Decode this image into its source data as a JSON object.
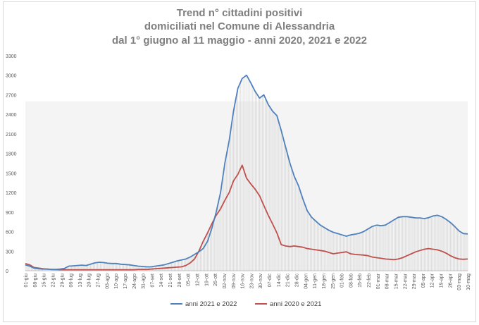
{
  "title_lines": [
    "Trend n° cittadini positivi",
    "domiciliati nel Comune di Alessandria",
    "dal 1° giugno al 11 maggio - anni 2020, 2021 e 2022"
  ],
  "chart_data": {
    "type": "line",
    "title": "Trend n° cittadini positivi domiciliati nel Comune di Alessandria dal 1° giugno al 11 maggio - anni 2020, 2021 e 2022",
    "xlabel": "",
    "ylabel": "",
    "ylim": [
      0,
      3300
    ],
    "yticks": [
      0,
      300,
      600,
      900,
      1200,
      1500,
      1800,
      2100,
      2400,
      2700,
      3000,
      3300
    ],
    "categories": [
      "01-giu",
      "08-giu",
      "15-giu",
      "22-giu",
      "29-giu",
      "06-lug",
      "13-lug",
      "20-lug",
      "27-lug",
      "03-ago",
      "10-ago",
      "17-ago",
      "24-ago",
      "31-ago",
      "07-set",
      "14-set",
      "21-set",
      "28-set",
      "05-ott",
      "12-ott",
      "19-ott",
      "26-ott",
      "02-nov",
      "09-nov",
      "16-nov",
      "23-nov",
      "30-nov",
      "07-dic",
      "14-dic",
      "21-dic",
      "28-dic",
      "04-gen",
      "11-gen",
      "18-gen",
      "25-gen",
      "01-feb",
      "08-feb",
      "15-feb",
      "22-feb",
      "01-mar",
      "08-mar",
      "15-mar",
      "22-mar",
      "29-mar",
      "05-apr",
      "12-apr",
      "19-apr",
      "26-apr",
      "03-mag",
      "10-mag"
    ],
    "grid": false,
    "legend_position": "bottom",
    "series": [
      {
        "name": "anni 2021 e 2022",
        "color": "#4f81bd",
        "points": [
          [
            0,
            90
          ],
          [
            1,
            70
          ],
          [
            2,
            40
          ],
          [
            3,
            30
          ],
          [
            4,
            25
          ],
          [
            5,
            25
          ],
          [
            6,
            20
          ],
          [
            7,
            20
          ],
          [
            8,
            25
          ],
          [
            9,
            35
          ],
          [
            10,
            70
          ],
          [
            11,
            75
          ],
          [
            12,
            80
          ],
          [
            13,
            85
          ],
          [
            14,
            80
          ],
          [
            15,
            100
          ],
          [
            16,
            120
          ],
          [
            17,
            130
          ],
          [
            18,
            125
          ],
          [
            19,
            115
          ],
          [
            20,
            110
          ],
          [
            21,
            110
          ],
          [
            22,
            100
          ],
          [
            23,
            95
          ],
          [
            24,
            90
          ],
          [
            25,
            80
          ],
          [
            26,
            70
          ],
          [
            27,
            65
          ],
          [
            28,
            60
          ],
          [
            29,
            60
          ],
          [
            30,
            70
          ],
          [
            31,
            80
          ],
          [
            32,
            90
          ],
          [
            33,
            110
          ],
          [
            34,
            130
          ],
          [
            35,
            150
          ],
          [
            36,
            165
          ],
          [
            37,
            180
          ],
          [
            38,
            210
          ],
          [
            39,
            250
          ],
          [
            40,
            290
          ],
          [
            41,
            340
          ],
          [
            42,
            450
          ],
          [
            43,
            650
          ],
          [
            44,
            900
          ],
          [
            45,
            1200
          ],
          [
            46,
            1650
          ],
          [
            47,
            2000
          ],
          [
            48,
            2450
          ],
          [
            49,
            2800
          ],
          [
            50,
            2950
          ],
          [
            51,
            3000
          ],
          [
            52,
            2880
          ],
          [
            53,
            2750
          ],
          [
            54,
            2650
          ],
          [
            55,
            2700
          ],
          [
            56,
            2550
          ],
          [
            57,
            2450
          ],
          [
            58,
            2380
          ],
          [
            59,
            2150
          ],
          [
            60,
            1900
          ],
          [
            61,
            1650
          ],
          [
            62,
            1450
          ],
          [
            63,
            1300
          ],
          [
            64,
            1100
          ],
          [
            65,
            920
          ],
          [
            66,
            820
          ],
          [
            67,
            760
          ],
          [
            68,
            700
          ],
          [
            69,
            660
          ],
          [
            70,
            620
          ],
          [
            71,
            590
          ],
          [
            72,
            570
          ],
          [
            73,
            550
          ],
          [
            74,
            530
          ],
          [
            75,
            550
          ],
          [
            76,
            560
          ],
          [
            77,
            575
          ],
          [
            78,
            600
          ],
          [
            79,
            640
          ],
          [
            80,
            680
          ],
          [
            81,
            700
          ],
          [
            82,
            690
          ],
          [
            83,
            700
          ],
          [
            84,
            740
          ],
          [
            85,
            780
          ],
          [
            86,
            820
          ],
          [
            87,
            830
          ],
          [
            88,
            830
          ],
          [
            89,
            820
          ],
          [
            90,
            810
          ],
          [
            91,
            810
          ],
          [
            92,
            800
          ],
          [
            93,
            815
          ],
          [
            94,
            840
          ],
          [
            95,
            850
          ],
          [
            96,
            830
          ],
          [
            97,
            790
          ],
          [
            98,
            740
          ],
          [
            99,
            680
          ],
          [
            100,
            610
          ],
          [
            101,
            570
          ],
          [
            102,
            565
          ]
        ]
      },
      {
        "name": "anni 2020 e 2021",
        "color": "#c0504d",
        "points": [
          [
            0,
            110
          ],
          [
            1,
            90
          ],
          [
            2,
            50
          ],
          [
            3,
            40
          ],
          [
            4,
            30
          ],
          [
            5,
            25
          ],
          [
            6,
            20
          ],
          [
            7,
            18
          ],
          [
            8,
            15
          ],
          [
            9,
            15
          ],
          [
            10,
            15
          ],
          [
            11,
            15
          ],
          [
            12,
            15
          ],
          [
            13,
            15
          ],
          [
            14,
            15
          ],
          [
            15,
            15
          ],
          [
            16,
            15
          ],
          [
            17,
            15
          ],
          [
            18,
            15
          ],
          [
            19,
            15
          ],
          [
            20,
            15
          ],
          [
            21,
            15
          ],
          [
            22,
            15
          ],
          [
            23,
            15
          ],
          [
            24,
            15
          ],
          [
            25,
            15
          ],
          [
            26,
            20
          ],
          [
            27,
            20
          ],
          [
            28,
            20
          ],
          [
            29,
            25
          ],
          [
            30,
            30
          ],
          [
            31,
            35
          ],
          [
            32,
            40
          ],
          [
            33,
            45
          ],
          [
            34,
            50
          ],
          [
            35,
            55
          ],
          [
            36,
            60
          ],
          [
            37,
            80
          ],
          [
            38,
            120
          ],
          [
            39,
            180
          ],
          [
            40,
            300
          ],
          [
            41,
            450
          ],
          [
            42,
            580
          ],
          [
            43,
            720
          ],
          [
            44,
            850
          ],
          [
            45,
            950
          ],
          [
            46,
            1080
          ],
          [
            47,
            1200
          ],
          [
            48,
            1380
          ],
          [
            49,
            1480
          ],
          [
            50,
            1620
          ],
          [
            51,
            1420
          ],
          [
            52,
            1330
          ],
          [
            53,
            1250
          ],
          [
            54,
            1150
          ],
          [
            55,
            1000
          ],
          [
            56,
            850
          ],
          [
            57,
            720
          ],
          [
            58,
            580
          ],
          [
            59,
            400
          ],
          [
            60,
            380
          ],
          [
            61,
            370
          ],
          [
            62,
            380
          ],
          [
            63,
            370
          ],
          [
            64,
            360
          ],
          [
            65,
            340
          ],
          [
            66,
            330
          ],
          [
            67,
            320
          ],
          [
            68,
            310
          ],
          [
            69,
            300
          ],
          [
            70,
            280
          ],
          [
            71,
            260
          ],
          [
            72,
            270
          ],
          [
            73,
            280
          ],
          [
            74,
            290
          ],
          [
            75,
            260
          ],
          [
            76,
            250
          ],
          [
            77,
            245
          ],
          [
            78,
            240
          ],
          [
            79,
            230
          ],
          [
            80,
            210
          ],
          [
            81,
            200
          ],
          [
            82,
            190
          ],
          [
            83,
            180
          ],
          [
            84,
            175
          ],
          [
            85,
            170
          ],
          [
            86,
            180
          ],
          [
            87,
            200
          ],
          [
            88,
            230
          ],
          [
            89,
            260
          ],
          [
            90,
            290
          ],
          [
            91,
            310
          ],
          [
            92,
            330
          ],
          [
            93,
            340
          ],
          [
            94,
            330
          ],
          [
            95,
            320
          ],
          [
            96,
            300
          ],
          [
            97,
            270
          ],
          [
            98,
            230
          ],
          [
            99,
            200
          ],
          [
            100,
            180
          ],
          [
            101,
            175
          ],
          [
            102,
            180
          ]
        ]
      }
    ]
  }
}
